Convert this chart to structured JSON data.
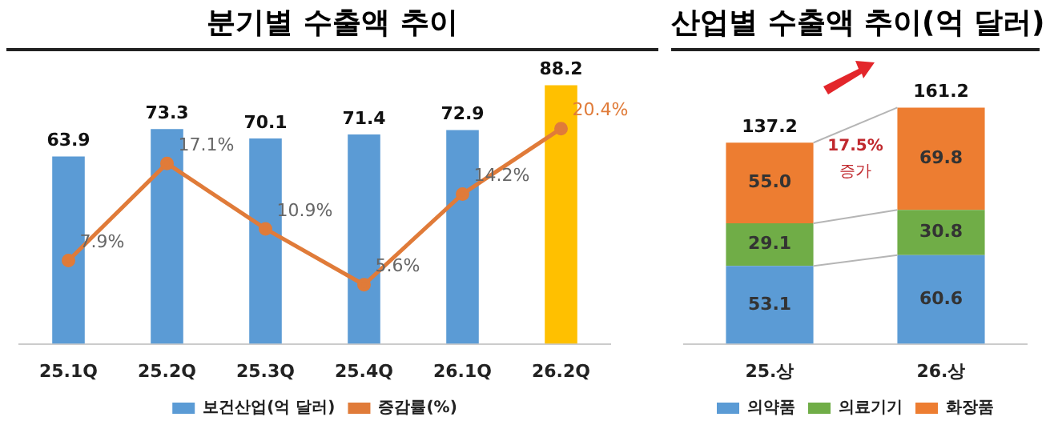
{
  "chart_data": [
    {
      "type": "bar",
      "title": "분기별 수출액 추이",
      "categories": [
        "25.1Q",
        "25.2Q",
        "25.3Q",
        "25.4Q",
        "26.1Q",
        "26.2Q"
      ],
      "series": [
        {
          "name": "보건산업(억 달러)",
          "color": "#5b9bd5",
          "colors": [
            "#5b9bd5",
            "#5b9bd5",
            "#5b9bd5",
            "#5b9bd5",
            "#5b9bd5",
            "#ffc000"
          ],
          "values": [
            63.9,
            73.3,
            70.1,
            71.4,
            72.9,
            88.2
          ],
          "value_labels": [
            "63.9",
            "73.3",
            "70.1",
            "71.4",
            "72.9",
            "88.2"
          ]
        },
        {
          "name": "증감률(%)",
          "type": "line",
          "axis": "y2",
          "color": "#e07b39",
          "values": [
            7.9,
            17.1,
            10.9,
            5.6,
            14.2,
            20.4
          ],
          "value_labels": [
            "7.9%",
            "17.1%",
            "10.9%",
            "5.6%",
            "14.2%",
            "20.4%"
          ]
        }
      ],
      "tick_labels": "x",
      "legend": "bottom",
      "marker": "circle"
    },
    {
      "type": "bar",
      "title": "산업별 수출액 추이(억 달러)",
      "categories": [
        "25.상",
        "26.상"
      ],
      "stacked": true,
      "series": [
        {
          "name": "의약품",
          "color": "#5b9bd5",
          "values": [
            53.1,
            60.6
          ],
          "value_labels": [
            "53.1",
            "60.6"
          ]
        },
        {
          "name": "의료기기",
          "color": "#70ad47",
          "values": [
            29.1,
            30.8
          ],
          "value_labels": [
            "29.1",
            "30.8"
          ]
        },
        {
          "name": "화장품",
          "color": "#ed7d31",
          "values": [
            55.0,
            69.8
          ],
          "value_labels": [
            "55.0",
            "69.8"
          ]
        }
      ],
      "totals": [
        "137.2",
        "161.2"
      ],
      "annotations": [
        "17.5%",
        "증가"
      ],
      "tick_labels": "x",
      "legend": "bottom"
    }
  ]
}
